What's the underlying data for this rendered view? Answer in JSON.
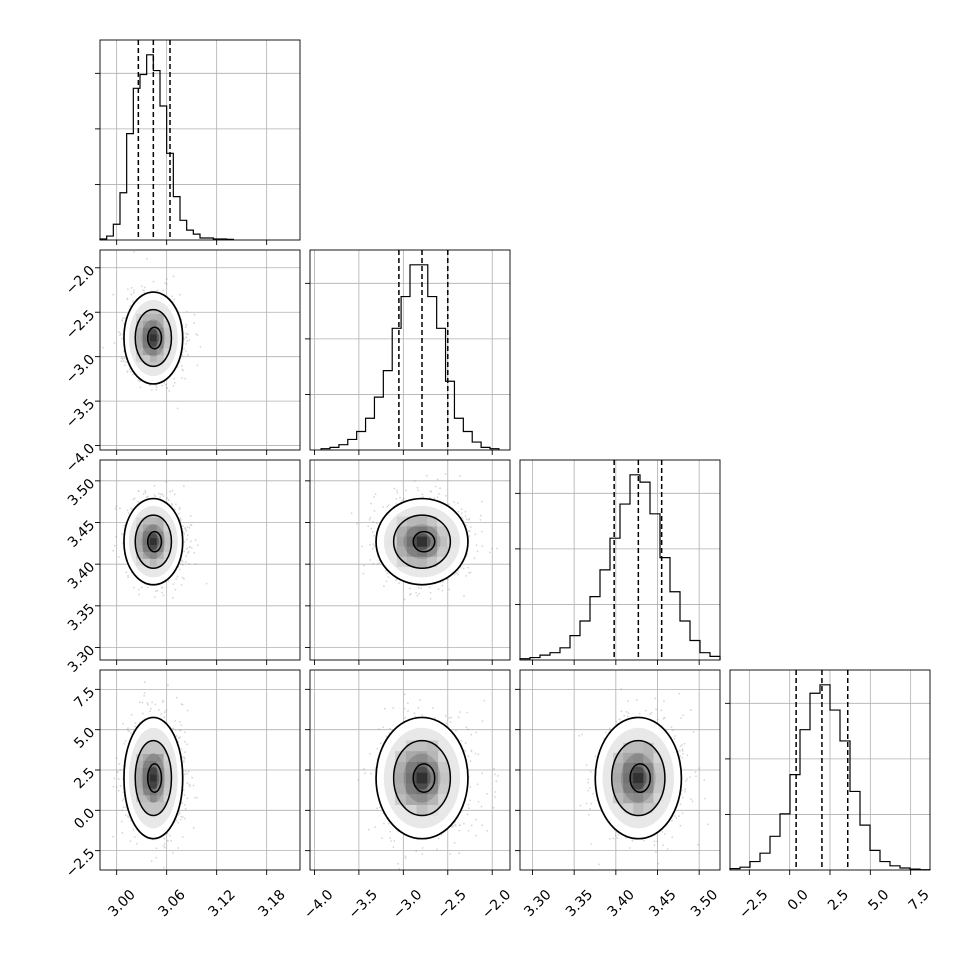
{
  "chart_data": {
    "type": "corner",
    "parameters": 4,
    "panel_grid": "lower-triangle",
    "grid": true,
    "contour_levels": 3,
    "quantile_lines": "dashed",
    "axes": [
      {
        "range": [
          2.98,
          3.22
        ],
        "ticks": [
          3.0,
          3.06,
          3.12,
          3.18
        ],
        "tick_labels": [
          "3.00",
          "3.06",
          "3.12",
          "3.18"
        ],
        "quantiles": [
          3.026,
          3.044,
          3.064
        ]
      },
      {
        "range": [
          -4.05,
          -1.8
        ],
        "ticks": [
          -4.0,
          -3.5,
          -3.0,
          -2.5,
          -2.0
        ],
        "tick_labels": [
          "−4.0",
          "−3.5",
          "−3.0",
          "−2.5",
          "−2.0"
        ],
        "quantiles": [
          -3.05,
          -2.79,
          -2.5
        ]
      },
      {
        "range": [
          3.285,
          3.525
        ],
        "ticks": [
          3.3,
          3.35,
          3.4,
          3.45,
          3.5
        ],
        "tick_labels": [
          "3.30",
          "3.35",
          "3.40",
          "3.45",
          "3.50"
        ],
        "quantiles": [
          3.398,
          3.427,
          3.455
        ]
      },
      {
        "range": [
          -3.7,
          8.7
        ],
        "ticks": [
          -2.5,
          0.0,
          2.5,
          5.0,
          7.5
        ],
        "tick_labels": [
          "−2.5",
          "0.0",
          "2.5",
          "5.0",
          "7.5"
        ],
        "quantiles": [
          0.4,
          2.0,
          3.6
        ]
      }
    ],
    "histograms": [
      {
        "edges": [
          2.98,
          2.988,
          2.996,
          3.004,
          3.012,
          3.02,
          3.028,
          3.036,
          3.044,
          3.052,
          3.06,
          3.068,
          3.076,
          3.084,
          3.092,
          3.1,
          3.108,
          3.116,
          3.124,
          3.132,
          3.14
        ],
        "counts": [
          0.5,
          2,
          8,
          24,
          54,
          77,
          84,
          94,
          86,
          68,
          44,
          22,
          10,
          5,
          3,
          1,
          1,
          0.5,
          0.5,
          0.3
        ]
      },
      {
        "edges": [
          -3.925,
          -3.825,
          -3.725,
          -3.625,
          -3.525,
          -3.425,
          -3.325,
          -3.225,
          -3.125,
          -3.025,
          -2.925,
          -2.825,
          -2.725,
          -2.625,
          -2.525,
          -2.425,
          -2.325,
          -2.225,
          -2.125,
          -2.025,
          -1.925
        ],
        "counts": [
          0.5,
          1,
          2,
          4,
          7,
          12,
          20,
          30,
          46,
          58,
          70,
          70,
          58,
          46,
          26,
          12,
          7,
          3,
          1,
          0.5
        ]
      },
      {
        "edges": [
          3.285,
          3.297,
          3.309,
          3.321,
          3.333,
          3.345,
          3.357,
          3.369,
          3.381,
          3.393,
          3.405,
          3.417,
          3.429,
          3.441,
          3.453,
          3.465,
          3.477,
          3.489,
          3.501,
          3.513,
          3.525
        ],
        "counts": [
          0.5,
          1,
          2,
          3,
          5,
          10,
          16,
          26,
          37,
          50,
          64,
          76,
          73,
          60,
          42,
          28,
          16,
          8,
          3,
          1.5
        ]
      },
      {
        "edges": [
          -3.7,
          -3.08,
          -2.46,
          -1.84,
          -1.22,
          -0.6,
          0.02,
          0.64,
          1.26,
          1.88,
          2.5,
          3.12,
          3.74,
          4.36,
          4.98,
          5.6,
          6.22,
          6.84,
          7.46,
          8.08,
          8.7
        ],
        "counts": [
          0.5,
          1,
          3,
          6,
          12,
          20,
          34,
          50,
          63,
          66,
          57,
          46,
          28,
          16,
          7,
          3,
          1.5,
          0.7,
          0.3,
          0.1
        ]
      }
    ],
    "pairs": [
      {
        "row": 1,
        "col": 0,
        "center": [
          3.044,
          -2.79
        ],
        "sigma": [
          0.015,
          0.22
        ]
      },
      {
        "row": 2,
        "col": 0,
        "center": [
          3.044,
          3.427
        ],
        "sigma": [
          0.015,
          0.022
        ]
      },
      {
        "row": 2,
        "col": 1,
        "center": [
          -2.79,
          3.427
        ],
        "sigma": [
          0.22,
          0.022
        ]
      },
      {
        "row": 3,
        "col": 0,
        "center": [
          3.044,
          2.0
        ],
        "sigma": [
          0.015,
          1.6
        ]
      },
      {
        "row": 3,
        "col": 1,
        "center": [
          -2.79,
          2.0
        ],
        "sigma": [
          0.22,
          1.6
        ]
      },
      {
        "row": 3,
        "col": 2,
        "center": [
          3.427,
          2.0
        ],
        "sigma": [
          0.022,
          1.6
        ]
      }
    ]
  }
}
